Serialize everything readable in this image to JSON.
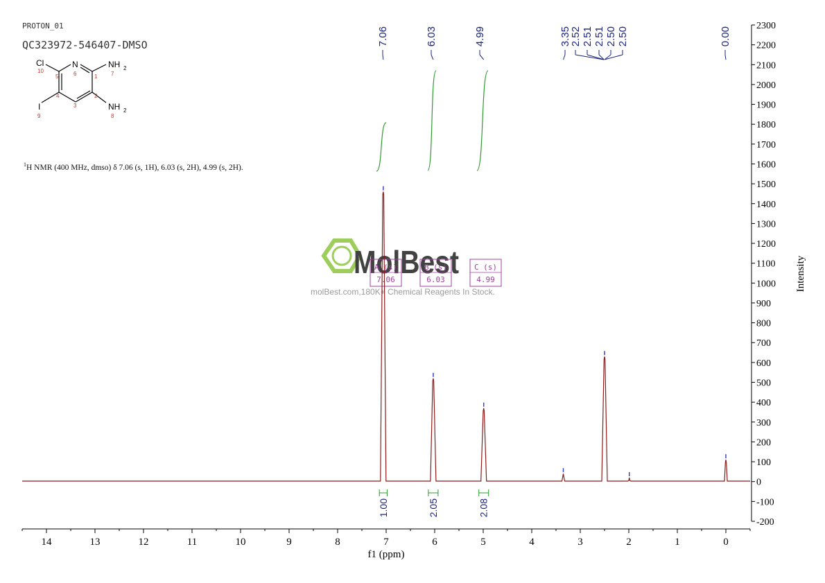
{
  "header": {
    "spectrum_name": "PROTON_01",
    "sample_id": "QC323972-546407-DMSO"
  },
  "structure": {
    "atoms": {
      "cl": "Cl",
      "n6": "N",
      "nh2_top": "NH",
      "nh2_bottom": "NH",
      "i": "I",
      "sub": "2"
    },
    "numbers": [
      "10",
      "5",
      "6",
      "1",
      "7",
      "4",
      "2",
      "3",
      "9",
      "8"
    ]
  },
  "nmr_description": {
    "sup": "1",
    "text": "H NMR (400 MHz, dmso) δ 7.06 (s, 1H), 6.03 (s, 2H), 4.99 (s, 2H)."
  },
  "watermark": {
    "brand": "MolBest",
    "tagline": "molBest.com,180K+ Chemical Reagents In Stock."
  },
  "chart_data": {
    "type": "line",
    "xlabel": "f1 (ppm)",
    "ylabel": "Intensity",
    "xlim": [
      14.5,
      -0.5
    ],
    "ylim": [
      -200,
      2300
    ],
    "x_ticks": [
      "14",
      "13",
      "12",
      "11",
      "10",
      "9",
      "8",
      "7",
      "6",
      "5",
      "4",
      "3",
      "2",
      "1",
      "0"
    ],
    "y_ticks": [
      "2300",
      "2200",
      "2100",
      "2000",
      "1900",
      "1800",
      "1700",
      "1600",
      "1500",
      "1400",
      "1300",
      "1200",
      "1100",
      "1000",
      "900",
      "800",
      "700",
      "600",
      "500",
      "400",
      "300",
      "200",
      "100",
      "0",
      "-100",
      "-200"
    ],
    "peak_labels": [
      "7.06",
      "6.03",
      "4.99",
      "3.35",
      "2.52",
      "2.51",
      "2.51",
      "2.50",
      "2.50",
      "0.00"
    ],
    "peaks": [
      {
        "ppm": 7.06,
        "height": 1460
      },
      {
        "ppm": 6.03,
        "height": 520
      },
      {
        "ppm": 4.99,
        "height": 370
      },
      {
        "ppm": 3.35,
        "height": 40
      },
      {
        "ppm": 2.5,
        "height": 630
      },
      {
        "ppm": 1.99,
        "height": 20
      },
      {
        "ppm": 0.0,
        "height": 110
      }
    ],
    "integrals": [
      {
        "value": "1.00",
        "from": 7.14,
        "to": 6.98
      },
      {
        "value": "2.05",
        "from": 6.13,
        "to": 5.93
      },
      {
        "value": "2.08",
        "from": 5.09,
        "to": 4.89
      }
    ],
    "multiplets": [
      {
        "label": "A (s)",
        "ppm": "7.06"
      },
      {
        "label": "B (s)",
        "ppm": "6.03"
      },
      {
        "label": "C (s)",
        "ppm": "4.99"
      }
    ],
    "line_color": "#8b1a1a",
    "integral_color": "#2e9a2e",
    "label_color": "#1a237e",
    "multiplet_color": "#a040a0"
  }
}
